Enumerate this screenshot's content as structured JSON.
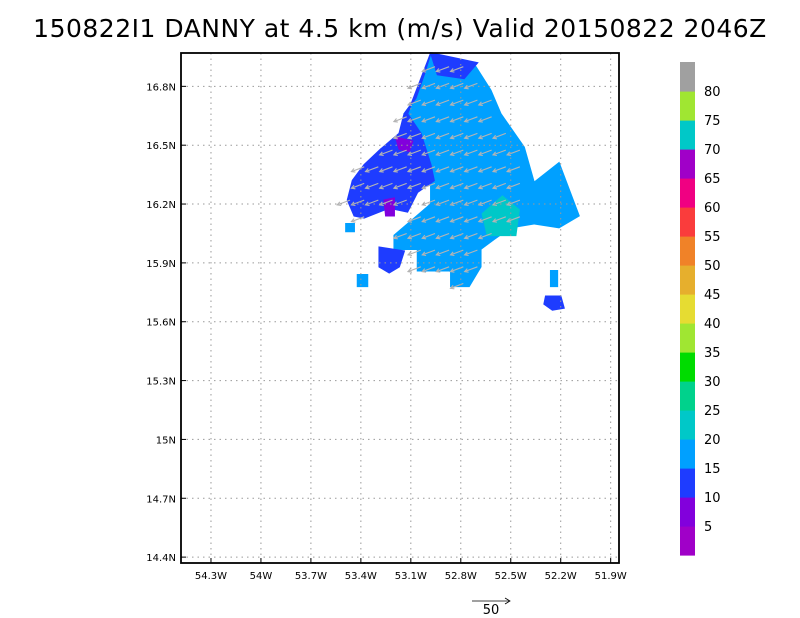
{
  "title": "150822I1 DANNY at 4.5 km (m/s) Valid 20150822 2046Z",
  "chart_data": {
    "type": "heatmap",
    "title": "150822I1 DANNY at 4.5 km (m/s) Valid 20150822 2046Z",
    "xlabel": "",
    "ylabel": "",
    "x_ticks": [
      "54.3W",
      "54W",
      "53.7W",
      "53.4W",
      "53.1W",
      "52.8W",
      "52.5W",
      "52.2W",
      "51.9W"
    ],
    "x_tick_values": [
      -54.3,
      -54.0,
      -53.7,
      -53.4,
      -53.1,
      -52.8,
      -52.5,
      -52.2,
      -51.9
    ],
    "y_ticks": [
      "14.4N",
      "14.7N",
      "15N",
      "15.3N",
      "15.6N",
      "15.9N",
      "16.2N",
      "16.5N",
      "16.8N"
    ],
    "y_tick_values": [
      14.4,
      14.7,
      15.0,
      15.3,
      15.6,
      15.9,
      16.2,
      16.5,
      16.8
    ],
    "xlim": [
      -54.48,
      -51.85
    ],
    "ylim": [
      14.37,
      16.97
    ],
    "grid": true,
    "colorbar": {
      "levels": [
        5,
        10,
        15,
        20,
        25,
        30,
        35,
        40,
        45,
        50,
        55,
        60,
        65,
        70,
        75,
        80
      ],
      "labels": [
        "5",
        "10",
        "15",
        "20",
        "25",
        "30",
        "35",
        "40",
        "45",
        "50",
        "55",
        "60",
        "65",
        "70",
        "75",
        "80"
      ],
      "colors": [
        "#a000c8",
        "#8200dc",
        "#1e3cff",
        "#00a0ff",
        "#00c8c8",
        "#00d28c",
        "#00dc00",
        "#a0e632",
        "#e6dc32",
        "#e6af2d",
        "#f08228",
        "#fa3c3c",
        "#f00082",
        "#a000c8",
        "#00c8c8",
        "#a0e632",
        "#a0a0a0"
      ]
    },
    "field_regions": [
      {
        "name": "main-15-20",
        "value": 17,
        "polygon": [
          [
            -52.97,
            16.97
          ],
          [
            -52.71,
            16.9
          ],
          [
            -52.62,
            16.78
          ],
          [
            -52.56,
            16.66
          ],
          [
            -52.42,
            16.49
          ],
          [
            -52.36,
            16.31
          ],
          [
            -52.36,
            16.1
          ],
          [
            -52.5,
            16.08
          ],
          [
            -52.6,
            16.02
          ],
          [
            -52.68,
            15.97
          ],
          [
            -52.68,
            15.88
          ],
          [
            -52.75,
            15.78
          ],
          [
            -52.86,
            15.78
          ],
          [
            -52.86,
            15.86
          ],
          [
            -52.98,
            15.86
          ],
          [
            -53.06,
            15.86
          ],
          [
            -53.06,
            15.97
          ],
          [
            -53.2,
            15.97
          ],
          [
            -53.2,
            16.04
          ],
          [
            -53.09,
            16.12
          ],
          [
            -52.98,
            16.2
          ],
          [
            -52.98,
            16.34
          ],
          [
            -52.98,
            16.4
          ],
          [
            -53.06,
            16.56
          ],
          [
            -53.14,
            16.66
          ],
          [
            -53.07,
            16.74
          ],
          [
            -53.02,
            16.86
          ],
          [
            -52.98,
            16.97
          ]
        ]
      },
      {
        "name": "east-tail-15-20",
        "value": 16,
        "polygon": [
          [
            -52.36,
            16.31
          ],
          [
            -52.21,
            16.41
          ],
          [
            -52.09,
            16.14
          ],
          [
            -52.21,
            16.08
          ],
          [
            -52.36,
            16.1
          ]
        ]
      },
      {
        "name": "blue-10-15-west",
        "value": 12,
        "polygon": [
          [
            -52.98,
            16.97
          ],
          [
            -53.02,
            16.86
          ],
          [
            -53.07,
            16.74
          ],
          [
            -53.14,
            16.66
          ],
          [
            -53.17,
            16.56
          ],
          [
            -53.28,
            16.48
          ],
          [
            -53.38,
            16.4
          ],
          [
            -53.45,
            16.32
          ],
          [
            -53.48,
            16.22
          ],
          [
            -53.44,
            16.14
          ],
          [
            -53.38,
            16.13
          ],
          [
            -53.23,
            16.18
          ],
          [
            -53.12,
            16.16
          ],
          [
            -53.06,
            16.26
          ],
          [
            -52.96,
            16.32
          ],
          [
            -52.98,
            16.4
          ],
          [
            -53.04,
            16.56
          ],
          [
            -53.12,
            16.66
          ]
        ]
      },
      {
        "name": "blue-10-15-north",
        "value": 12,
        "polygon": [
          [
            -52.98,
            16.97
          ],
          [
            -52.7,
            16.92
          ],
          [
            -52.78,
            16.84
          ],
          [
            -52.94,
            16.86
          ]
        ]
      },
      {
        "name": "blue-10-15-sw-blob",
        "value": 12,
        "polygon": [
          [
            -53.29,
            15.98
          ],
          [
            -53.14,
            15.96
          ],
          [
            -53.17,
            15.88
          ],
          [
            -53.23,
            15.85
          ],
          [
            -53.29,
            15.88
          ]
        ]
      },
      {
        "name": "blue-10-15-se-blob",
        "value": 12,
        "polygon": [
          [
            -52.29,
            15.73
          ],
          [
            -52.2,
            15.73
          ],
          [
            -52.18,
            15.67
          ],
          [
            -52.25,
            15.66
          ],
          [
            -52.3,
            15.69
          ]
        ]
      },
      {
        "name": "purple-5-10-north",
        "value": 7,
        "polygon": [
          [
            -53.19,
            16.54
          ],
          [
            -53.09,
            16.52
          ],
          [
            -53.11,
            16.47
          ],
          [
            -53.17,
            16.48
          ]
        ]
      },
      {
        "name": "purple-5-10-mid",
        "value": 7,
        "polygon": [
          [
            -53.26,
            16.22
          ],
          [
            -53.2,
            16.23
          ],
          [
            -53.2,
            16.14
          ],
          [
            -53.25,
            16.14
          ]
        ]
      },
      {
        "name": "teal-20-25",
        "value": 22,
        "polygon": [
          [
            -52.67,
            16.15
          ],
          [
            -52.55,
            16.24
          ],
          [
            -52.45,
            16.17
          ],
          [
            -52.47,
            16.04
          ],
          [
            -52.64,
            16.04
          ]
        ]
      },
      {
        "name": "isolated-cell-w",
        "value": 16,
        "polygon": [
          [
            -53.49,
            16.1
          ],
          [
            -53.44,
            16.1
          ],
          [
            -53.44,
            16.06
          ],
          [
            -53.49,
            16.06
          ]
        ]
      },
      {
        "name": "isolated-cell-sw",
        "value": 16,
        "polygon": [
          [
            -53.42,
            15.84
          ],
          [
            -53.36,
            15.84
          ],
          [
            -53.36,
            15.78
          ],
          [
            -53.42,
            15.78
          ]
        ]
      },
      {
        "name": "isolated-cell-e",
        "value": 16,
        "polygon": [
          [
            -52.26,
            15.86
          ],
          [
            -52.22,
            15.86
          ],
          [
            -52.22,
            15.78
          ],
          [
            -52.26,
            15.78
          ]
        ]
      }
    ],
    "vector_reference": {
      "label": "50",
      "magnitude": 50
    },
    "vectors": {
      "u": -4,
      "v": 1.5,
      "note_text": ""
    }
  }
}
